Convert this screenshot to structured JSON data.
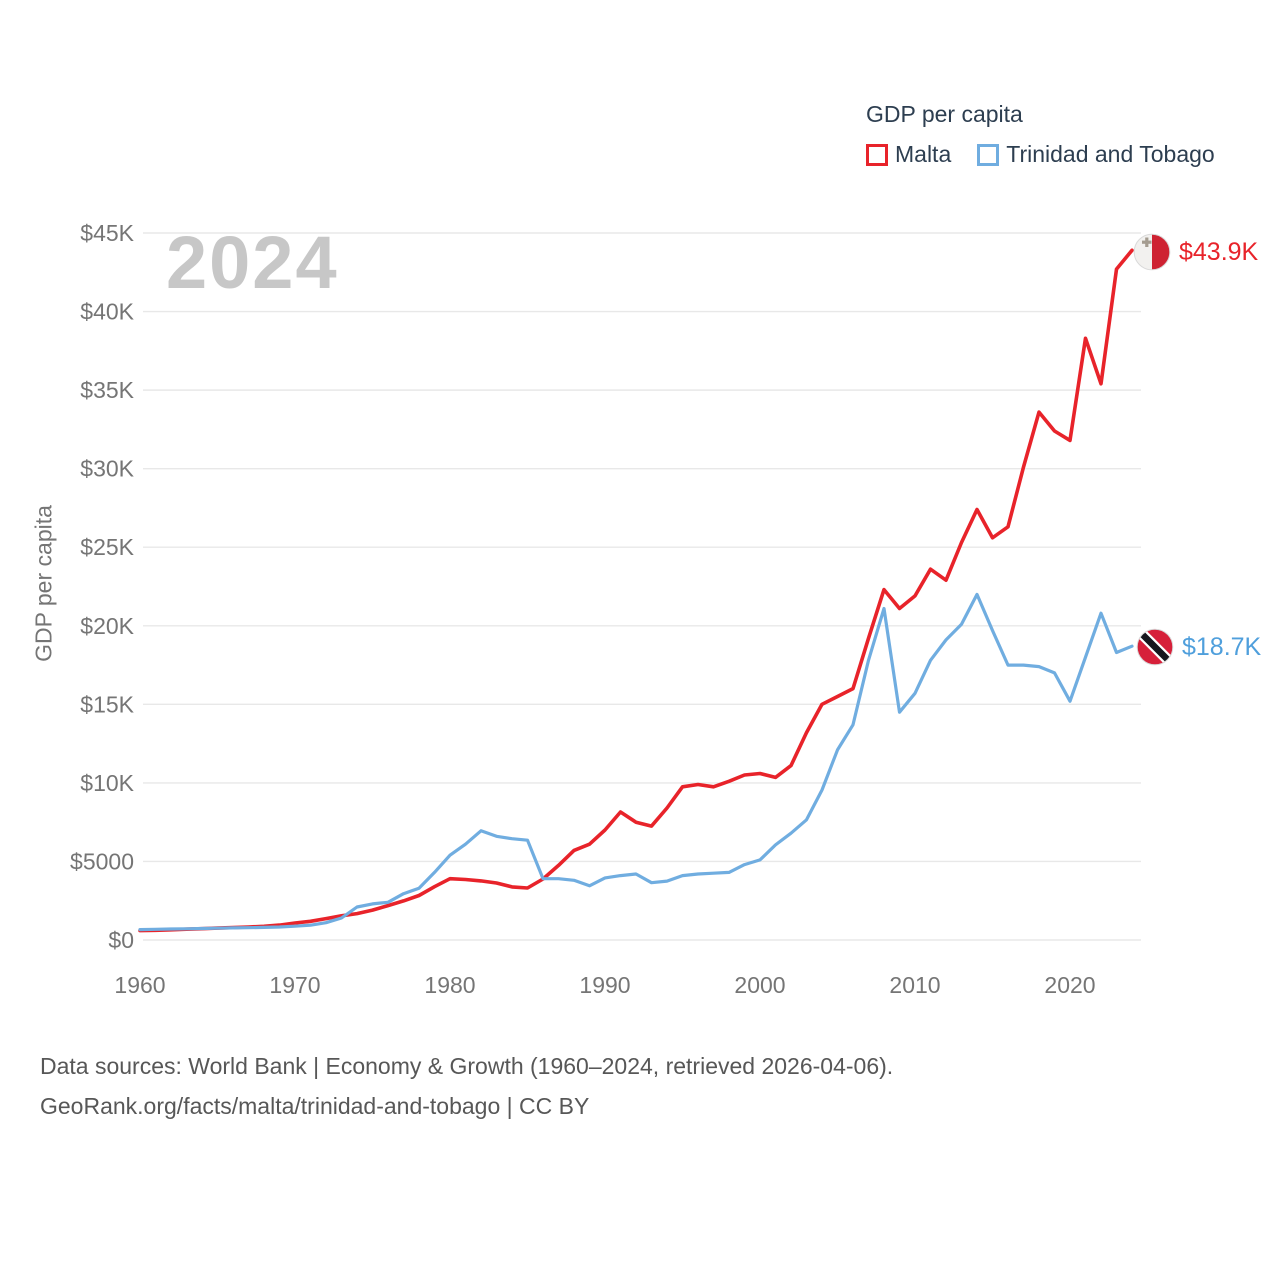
{
  "legend": {
    "title": "GDP per capita",
    "series": [
      {
        "label": "Malta",
        "color": "#e8232a"
      },
      {
        "label": "Trinidad and Tobago",
        "color": "#70ade0"
      }
    ]
  },
  "watermark": {
    "text": "2024"
  },
  "y_axis": {
    "title": "GDP per capita",
    "ticks": [
      {
        "label": "$0",
        "value": 0
      },
      {
        "label": "$5000",
        "value": 5000
      },
      {
        "label": "$10K",
        "value": 10000
      },
      {
        "label": "$15K",
        "value": 15000
      },
      {
        "label": "$20K",
        "value": 20000
      },
      {
        "label": "$25K",
        "value": 25000
      },
      {
        "label": "$30K",
        "value": 30000
      },
      {
        "label": "$35K",
        "value": 35000
      },
      {
        "label": "$40K",
        "value": 40000
      },
      {
        "label": "$45K",
        "value": 45000
      }
    ]
  },
  "x_axis": {
    "ticks": [
      1960,
      1970,
      1980,
      1990,
      2000,
      2010,
      2020
    ]
  },
  "end_labels": {
    "malta": {
      "value_label": "$43.9K",
      "color": "#e8232a",
      "flag": "malta-flag"
    },
    "trinidad_and_tobago": {
      "value_label": "$18.7K",
      "color": "#4f9fdc",
      "flag": "trinidad-and-tobago-flag"
    }
  },
  "footer": {
    "line1": "Data sources: World Bank | Economy & Growth (1960–2024, retrieved 2026-04-06).",
    "line2": "GeoRank.org/facts/malta/trinidad-and-tobago | CC BY"
  },
  "chart_data": {
    "type": "line",
    "title": "GDP per capita",
    "ylabel": "GDP per capita",
    "xlim": [
      1960,
      2024
    ],
    "ylim": [
      0,
      45000
    ],
    "grid": true,
    "legend_position": "top-right",
    "x": [
      1960,
      1961,
      1962,
      1963,
      1964,
      1965,
      1966,
      1967,
      1968,
      1969,
      1970,
      1971,
      1972,
      1973,
      1974,
      1975,
      1976,
      1977,
      1978,
      1979,
      1980,
      1981,
      1982,
      1983,
      1984,
      1985,
      1986,
      1987,
      1988,
      1989,
      1990,
      1991,
      1992,
      1993,
      1994,
      1995,
      1996,
      1997,
      1998,
      1999,
      2000,
      2001,
      2002,
      2003,
      2004,
      2005,
      2006,
      2007,
      2008,
      2009,
      2010,
      2011,
      2012,
      2013,
      2014,
      2015,
      2016,
      2017,
      2018,
      2019,
      2020,
      2021,
      2022,
      2023,
      2024
    ],
    "series": [
      {
        "name": "Malta",
        "color": "#e8232a",
        "final_value_label": "$43.9K",
        "values": [
          600,
          620,
          650,
          690,
          720,
          760,
          790,
          830,
          870,
          950,
          1080,
          1190,
          1360,
          1540,
          1680,
          1900,
          2190,
          2490,
          2830,
          3390,
          3900,
          3850,
          3760,
          3630,
          3380,
          3310,
          3880,
          4750,
          5700,
          6100,
          7000,
          8150,
          7500,
          7250,
          8400,
          9750,
          9900,
          9750,
          10100,
          10500,
          10600,
          10350,
          11100,
          13200,
          15000,
          15500,
          16000,
          19200,
          22300,
          21100,
          21900,
          23600,
          22900,
          25300,
          27400,
          25600,
          26300,
          30100,
          33600,
          32400,
          31800,
          38300,
          35400,
          42700,
          43900
        ]
      },
      {
        "name": "Trinidad and Tobago",
        "color": "#70ade0",
        "final_value_label": "$18.7K",
        "values": [
          660,
          680,
          700,
          710,
          730,
          750,
          770,
          780,
          800,
          830,
          880,
          940,
          1100,
          1400,
          2100,
          2300,
          2400,
          2950,
          3300,
          4300,
          5400,
          6100,
          6950,
          6600,
          6450,
          6350,
          3900,
          3900,
          3800,
          3450,
          3950,
          4100,
          4200,
          3650,
          3750,
          4100,
          4200,
          4250,
          4300,
          4800,
          5100,
          6050,
          6800,
          7650,
          9550,
          12100,
          13700,
          17800,
          21100,
          14500,
          15700,
          17800,
          19100,
          20100,
          22000,
          19700,
          17500,
          17500,
          17400,
          17000,
          15200,
          18000,
          20800,
          18300,
          18700
        ]
      }
    ]
  }
}
